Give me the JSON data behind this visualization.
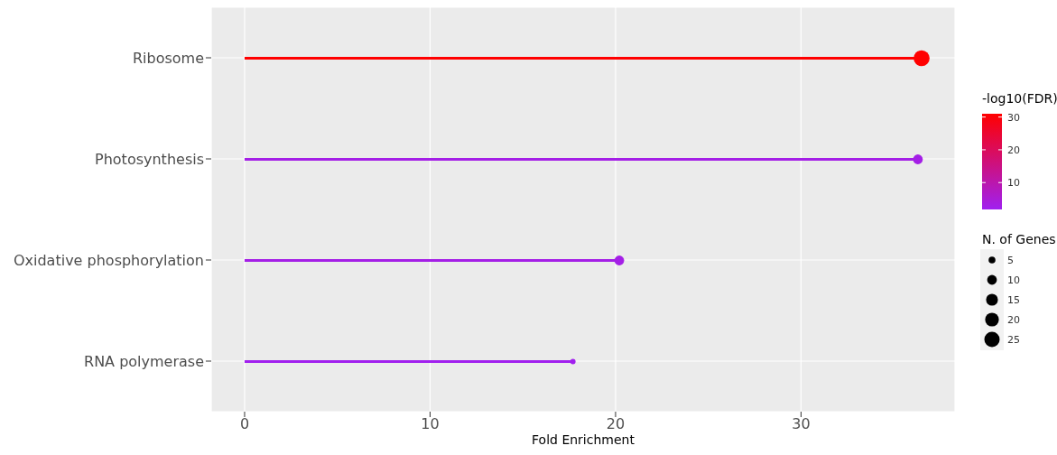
{
  "chart_data": {
    "type": "lollipop",
    "orientation": "horizontal",
    "xlabel": "Fold Enrichment",
    "categories": [
      "Ribosome",
      "Photosynthesis",
      "Oxidative phosphorylation",
      "RNA polymerase"
    ],
    "values": [
      36.5,
      36.3,
      20.2,
      17.7
    ],
    "cvalues": [
      31,
      3,
      3,
      2
    ],
    "sizes": [
      27,
      10,
      10,
      3
    ],
    "size_legend": [
      5,
      10,
      15,
      20,
      25
    ],
    "legend_title": "N. of Genes",
    "clabel": "-log10(FDR)",
    "clim": [
      1.8,
      31
    ],
    "cticks": [
      10,
      20,
      30
    ],
    "xlim": [
      -1.8,
      38.3
    ],
    "xticks": [
      0,
      10,
      20,
      30
    ],
    "grid": true
  }
}
